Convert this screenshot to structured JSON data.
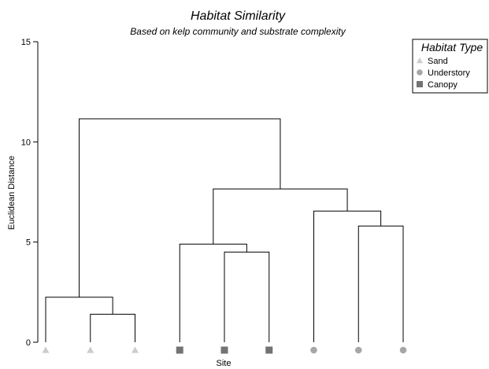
{
  "chart_data": {
    "type": "dendrogram",
    "title": "Habitat Similarity",
    "subtitle": "Based on kelp community and substrate complexity",
    "xlabel": "Site",
    "ylabel": "Euclidean Distance",
    "ylim": [
      0,
      15
    ],
    "yticks": [
      0,
      5,
      10,
      15
    ],
    "grid": false,
    "legend": {
      "title": "Habitat Type",
      "placement": "top-right",
      "entries": [
        {
          "label": "Sand",
          "marker": "triangle",
          "color": "#cccccc"
        },
        {
          "label": "Understory",
          "marker": "circle",
          "color": "#a6a6a6"
        },
        {
          "label": "Canopy",
          "marker": "square",
          "color": "#737373"
        }
      ]
    },
    "leaves": [
      {
        "habitat": "Sand"
      },
      {
        "habitat": "Sand"
      },
      {
        "habitat": "Sand"
      },
      {
        "habitat": "Canopy"
      },
      {
        "habitat": "Canopy"
      },
      {
        "habitat": "Canopy"
      },
      {
        "habitat": "Understory"
      },
      {
        "habitat": "Understory"
      },
      {
        "habitat": "Understory"
      }
    ],
    "merges": [
      {
        "left": "L1",
        "right": "L2",
        "height": 1.4
      },
      {
        "left": "L0",
        "right": "M0",
        "height": 2.25
      },
      {
        "left": "L4",
        "right": "L5",
        "height": 4.5
      },
      {
        "left": "L3",
        "right": "M2",
        "height": 4.9
      },
      {
        "left": "L7",
        "right": "L8",
        "height": 5.8
      },
      {
        "left": "L6",
        "right": "M4",
        "height": 6.55
      },
      {
        "left": "M3",
        "right": "M5",
        "height": 7.65
      },
      {
        "left": "M1",
        "right": "M6",
        "height": 11.15
      }
    ]
  }
}
